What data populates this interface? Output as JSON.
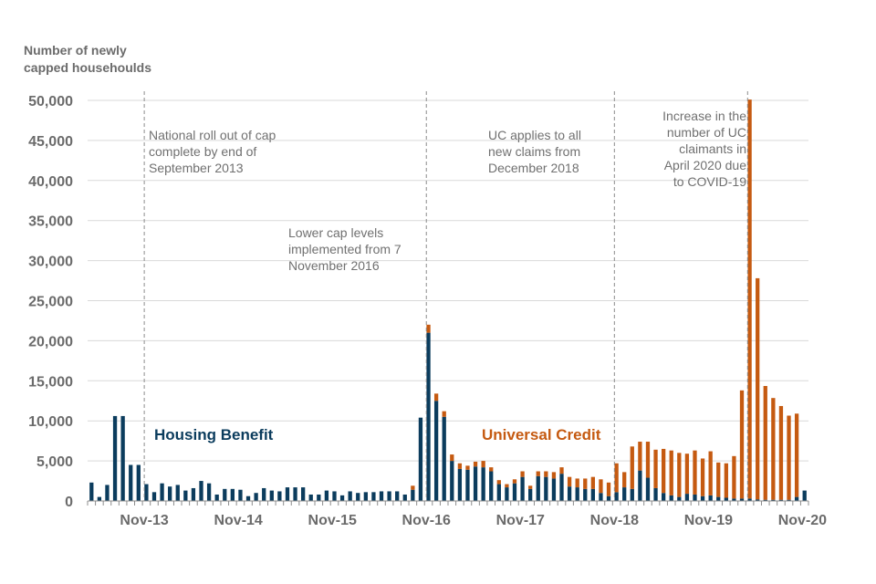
{
  "chart_data": {
    "type": "bar",
    "stacked": true,
    "title": "",
    "ylabel": "Number of newly capped househoulds",
    "xlabel": "",
    "ylim": [
      0,
      50000
    ],
    "yticks": [
      0,
      5000,
      10000,
      15000,
      20000,
      25000,
      30000,
      35000,
      40000,
      45000,
      50000
    ],
    "ytick_labels": [
      "0",
      "5,000",
      "10,000",
      "15,000",
      "20,000",
      "25,000",
      "30,000",
      "35,000",
      "40,000",
      "45,000",
      "50,000"
    ],
    "x_ticks": [
      {
        "label": "Nov-13",
        "month_index": 7
      },
      {
        "label": "Nov-14",
        "month_index": 19
      },
      {
        "label": "Nov-15",
        "month_index": 31
      },
      {
        "label": "Nov-16",
        "month_index": 43
      },
      {
        "label": "Nov-17",
        "month_index": 55
      },
      {
        "label": "Nov-18",
        "month_index": 67
      },
      {
        "label": "Nov-19",
        "month_index": 79
      },
      {
        "label": "Nov-20",
        "month_index": 91
      }
    ],
    "series": [
      {
        "name": "Housing Benefit",
        "color": "#0b3c5d",
        "values": [
          2300,
          500,
          2000,
          10600,
          10600,
          4500,
          4500,
          2100,
          1100,
          2200,
          1800,
          2000,
          1300,
          1600,
          2500,
          2200,
          800,
          1500,
          1500,
          1400,
          600,
          1000,
          1600,
          1300,
          1200,
          1700,
          1700,
          1700,
          800,
          800,
          1300,
          1200,
          700,
          1200,
          1000,
          1100,
          1100,
          1200,
          1200,
          1200,
          800,
          1400,
          10400,
          21000,
          12500,
          10500,
          5000,
          4000,
          3900,
          4300,
          4200,
          3700,
          2100,
          1700,
          2200,
          3000,
          1500,
          3100,
          3000,
          2800,
          3400,
          1800,
          1700,
          1500,
          1500,
          1000,
          600,
          1100,
          1700,
          1500,
          3800,
          2900,
          1600,
          1000,
          700,
          500,
          900,
          800,
          600,
          700,
          500,
          400,
          300,
          300,
          300,
          200,
          150,
          150,
          150,
          150,
          500,
          1300
        ]
      },
      {
        "name": "Universal Credit",
        "color": "#c55a11",
        "values": [
          0,
          0,
          0,
          0,
          0,
          0,
          0,
          0,
          0,
          0,
          0,
          0,
          0,
          0,
          0,
          0,
          0,
          0,
          0,
          0,
          0,
          0,
          0,
          0,
          0,
          0,
          0,
          0,
          0,
          0,
          0,
          0,
          0,
          0,
          0,
          0,
          0,
          0,
          0,
          0,
          0,
          500,
          0,
          1000,
          900,
          700,
          800,
          700,
          500,
          600,
          800,
          500,
          500,
          400,
          500,
          700,
          400,
          600,
          700,
          800,
          800,
          1200,
          1100,
          1300,
          1500,
          1700,
          1700,
          3600,
          1900,
          5300,
          3600,
          4500,
          4800,
          5500,
          5600,
          5500,
          5000,
          5500,
          4700,
          5500,
          4300,
          4300,
          5300,
          13500,
          49800,
          27600,
          14200,
          12700,
          11700,
          10500,
          10400,
          0
        ]
      }
    ],
    "vertical_markers": [
      {
        "month_index": 7,
        "label": "National roll out of cap complete by end of September 2013"
      },
      {
        "month_index": 43,
        "label": "Lower cap levels implemented from 7 November 2016"
      },
      {
        "month_index": 67,
        "label": "UC applies to all new claims from December 2018"
      },
      {
        "month_index": 84,
        "label": "Increase in the number of UC claimants in April 2020 due to COVID-19"
      }
    ]
  },
  "y_title_line1": "Number of newly",
  "y_title_line2": "capped househoulds",
  "annotations": {
    "rollout": [
      "National roll out of cap",
      "complete by end of",
      "September 2013"
    ],
    "lower_cap": [
      "Lower cap levels",
      "implemented from 7",
      "November 2016"
    ],
    "uc_claims": [
      "UC applies to all",
      "new claims from",
      "December 2018"
    ],
    "covid": [
      "Increase in the",
      "number of UC",
      "claimants in",
      "April 2020 due",
      "to COVID-19"
    ]
  },
  "labels": {
    "housing_benefit": "Housing Benefit",
    "universal_credit": "Universal Credit"
  }
}
